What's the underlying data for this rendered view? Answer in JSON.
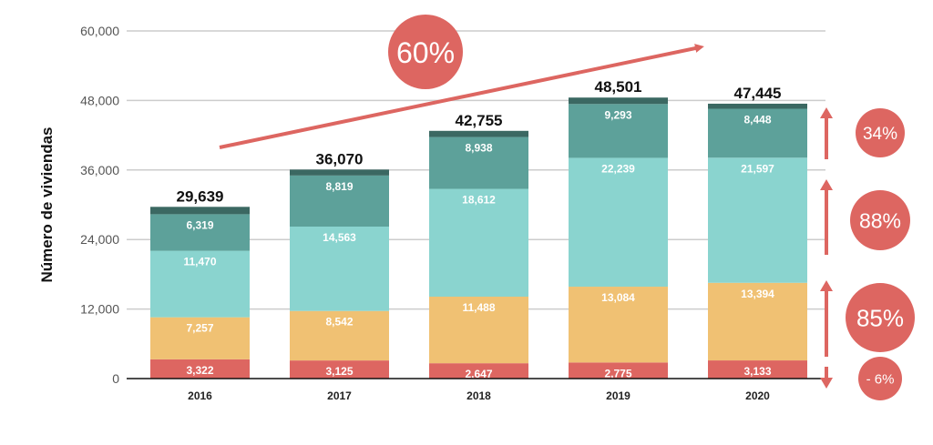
{
  "chart_data": {
    "type": "bar",
    "stacked": true,
    "title": "",
    "xlabel": "",
    "ylabel": "Número de viviendas",
    "ylim": [
      0,
      60000
    ],
    "yticks": [
      0,
      12000,
      24000,
      36000,
      48000,
      60000
    ],
    "ytick_labels": [
      "0",
      "12,000",
      "24,000",
      "36,000",
      "48,000",
      "60,000"
    ],
    "grid": true,
    "categories": [
      "2016",
      "2017",
      "2018",
      "2019",
      "2020"
    ],
    "series": [
      {
        "name": "segment-1",
        "color": "#dd6661",
        "values": [
          3322,
          3125,
          2647,
          2775,
          3133
        ],
        "labels": [
          "3,322",
          "3,125",
          "2,647",
          "2,775",
          "3,133"
        ]
      },
      {
        "name": "segment-2",
        "color": "#f0c173",
        "values": [
          7257,
          8542,
          11488,
          13084,
          13394
        ],
        "labels": [
          "7,257",
          "8,542",
          "11,488",
          "13,084",
          "13,394"
        ]
      },
      {
        "name": "segment-3",
        "color": "#8ad4cf",
        "values": [
          11470,
          14563,
          18612,
          22239,
          21597
        ],
        "labels": [
          "11,470",
          "14,563",
          "18,612",
          "22,239",
          "21,597"
        ]
      },
      {
        "name": "segment-4",
        "color": "#5da19a",
        "values": [
          6319,
          8819,
          8938,
          9293,
          8448
        ],
        "labels": [
          "6,319",
          "8,819",
          "8,938",
          "9,293",
          "8,448"
        ]
      },
      {
        "name": "segment-5",
        "color": "#3b6862",
        "values": [
          1271,
          1021,
          1070,
          1110,
          873
        ],
        "labels": null
      }
    ],
    "totals": [
      29639,
      36070,
      42755,
      48501,
      47445
    ],
    "total_labels": [
      "29,639",
      "36,070",
      "42,755",
      "48,501",
      "47,445"
    ],
    "annotations": {
      "trend": {
        "label": "60%",
        "color": "#dd6661"
      },
      "changes": [
        {
          "label": "34%",
          "series": "segment-4",
          "direction": "up"
        },
        {
          "label": "88%",
          "series": "segment-3",
          "direction": "up"
        },
        {
          "label": "85%",
          "series": "segment-2",
          "direction": "up"
        },
        {
          "label": "- 6%",
          "series": "segment-1",
          "direction": "down"
        }
      ]
    }
  }
}
